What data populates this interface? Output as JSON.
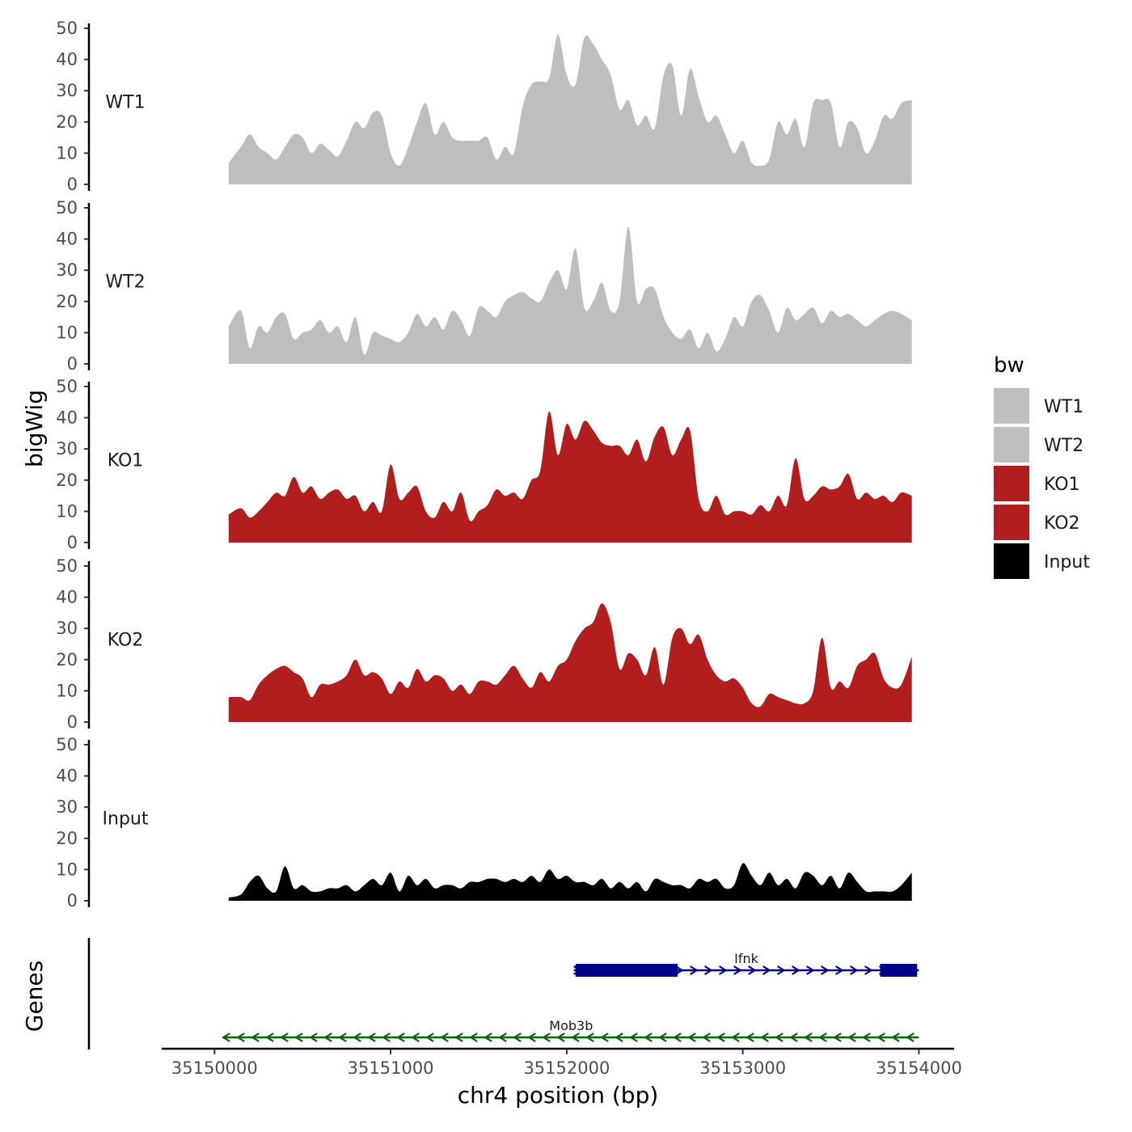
{
  "chart_data": {
    "type": "area",
    "xlabel": "chr4 position (bp)",
    "ylabel": "bigWig",
    "genes_label": "Genes",
    "xlim": [
      35149700,
      35154200
    ],
    "xticks": [
      35150000,
      35151000,
      35152000,
      35153000,
      35154000
    ],
    "xtick_labels": [
      "35150000",
      "35151000",
      "35152000",
      "35153000",
      "35154000"
    ],
    "ylim": [
      0,
      50
    ],
    "yticks": [
      0,
      10,
      20,
      30,
      40,
      50
    ],
    "ytick_labels": [
      "0",
      "10",
      "20",
      "30",
      "40",
      "50"
    ],
    "legend": {
      "title": "bw",
      "position": "right",
      "items": [
        {
          "label": "WT1",
          "color": "#bebebe"
        },
        {
          "label": "WT2",
          "color": "#bebebe"
        },
        {
          "label": "KO1",
          "color": "#b21d1e"
        },
        {
          "label": "KO2",
          "color": "#b21d1e"
        },
        {
          "label": "Input",
          "color": "#000000"
        }
      ]
    },
    "series": [
      {
        "name": "WT1",
        "color": "#bebebe",
        "x": [
          35150080,
          35150150,
          35150200,
          35150250,
          35150300,
          35150350,
          35150400,
          35150450,
          35150500,
          35150550,
          35150600,
          35150650,
          35150700,
          35150750,
          35150800,
          35150850,
          35150900,
          35150950,
          35151000,
          35151050,
          35151100,
          35151150,
          35151200,
          35151250,
          35151300,
          35151350,
          35151400,
          35151450,
          35151500,
          35151550,
          35151600,
          35151650,
          35151700,
          35151750,
          35151800,
          35151850,
          35151900,
          35151950,
          35152000,
          35152050,
          35152100,
          35152150,
          35152200,
          35152250,
          35152300,
          35152350,
          35152400,
          35152450,
          35152500,
          35152550,
          35152600,
          35152650,
          35152700,
          35152750,
          35152800,
          35152850,
          35152900,
          35152950,
          35153000,
          35153050,
          35153100,
          35153150,
          35153200,
          35153250,
          35153300,
          35153350,
          35153400,
          35153450,
          35153500,
          35153550,
          35153600,
          35153650,
          35153700,
          35153750,
          35153800,
          35153850,
          35153900,
          35153960
        ],
        "values": [
          7,
          12,
          16,
          12,
          10,
          8,
          12,
          16,
          15,
          10,
          13,
          11,
          9,
          14,
          20,
          18,
          23,
          22,
          10,
          6,
          12,
          20,
          26,
          16,
          20,
          15,
          14,
          14,
          14,
          15,
          8,
          12,
          10,
          25,
          32,
          33,
          34,
          48,
          35,
          32,
          47,
          45,
          40,
          35,
          24,
          27,
          19,
          22,
          18,
          35,
          38,
          22,
          37,
          28,
          20,
          22,
          16,
          10,
          14,
          7,
          6,
          8,
          20,
          16,
          21,
          12,
          26,
          27,
          26,
          12,
          20,
          18,
          10,
          14,
          22,
          21,
          26,
          27
        ]
      },
      {
        "name": "WT2",
        "color": "#bebebe",
        "x": [
          35150080,
          35150150,
          35150200,
          35150250,
          35150300,
          35150350,
          35150400,
          35150450,
          35150500,
          35150550,
          35150600,
          35150650,
          35150700,
          35150750,
          35150800,
          35150850,
          35150900,
          35150950,
          35151000,
          35151050,
          35151100,
          35151150,
          35151200,
          35151250,
          35151300,
          35151350,
          35151400,
          35151450,
          35151500,
          35151550,
          35151600,
          35151650,
          35151700,
          35151750,
          35151800,
          35151850,
          35151900,
          35151950,
          35152000,
          35152050,
          35152100,
          35152150,
          35152200,
          35152250,
          35152300,
          35152350,
          35152400,
          35152450,
          35152500,
          35152550,
          35152600,
          35152650,
          35152700,
          35152750,
          35152800,
          35152850,
          35152900,
          35152950,
          35153000,
          35153050,
          35153100,
          35153150,
          35153200,
          35153250,
          35153300,
          35153350,
          35153400,
          35153450,
          35153500,
          35153550,
          35153600,
          35153650,
          35153700,
          35153750,
          35153800,
          35153850,
          35153900,
          35153960
        ],
        "values": [
          12,
          17,
          5,
          12,
          10,
          15,
          16,
          8,
          10,
          11,
          14,
          10,
          12,
          7,
          15,
          3,
          10,
          9,
          8,
          7,
          10,
          16,
          12,
          15,
          11,
          17,
          14,
          9,
          18,
          17,
          15,
          20,
          22,
          23,
          21,
          20,
          26,
          30,
          24,
          37,
          18,
          20,
          26,
          17,
          20,
          44,
          20,
          24,
          24,
          15,
          10,
          8,
          11,
          5,
          10,
          4,
          8,
          15,
          12,
          20,
          22,
          17,
          10,
          18,
          14,
          16,
          18,
          13,
          17,
          15,
          16,
          14,
          12,
          14,
          16,
          17,
          16,
          14
        ]
      },
      {
        "name": "KO1",
        "color": "#b21d1e",
        "x": [
          35150080,
          35150150,
          35150200,
          35150250,
          35150300,
          35150350,
          35150400,
          35150450,
          35150500,
          35150550,
          35150600,
          35150650,
          35150700,
          35150750,
          35150800,
          35150850,
          35150900,
          35150950,
          35151000,
          35151050,
          35151100,
          35151150,
          35151200,
          35151250,
          35151300,
          35151350,
          35151400,
          35151450,
          35151500,
          35151550,
          35151600,
          35151650,
          35151700,
          35151750,
          35151800,
          35151850,
          35151900,
          35151950,
          35152000,
          35152050,
          35152100,
          35152150,
          35152200,
          35152250,
          35152300,
          35152350,
          35152400,
          35152450,
          35152500,
          35152550,
          35152600,
          35152650,
          35152700,
          35152750,
          35152800,
          35152850,
          35152900,
          35152950,
          35153000,
          35153050,
          35153100,
          35153150,
          35153200,
          35153250,
          35153300,
          35153350,
          35153400,
          35153450,
          35153500,
          35153550,
          35153600,
          35153650,
          35153700,
          35153750,
          35153800,
          35153850,
          35153900,
          35153960
        ],
        "values": [
          9,
          11,
          8,
          10,
          13,
          16,
          15,
          21,
          16,
          18,
          14,
          16,
          17,
          14,
          15,
          10,
          13,
          10,
          25,
          14,
          16,
          18,
          10,
          8,
          13,
          10,
          16,
          7,
          10,
          12,
          17,
          15,
          16,
          14,
          20,
          23,
          42,
          28,
          38,
          33,
          39,
          36,
          32,
          31,
          31,
          28,
          33,
          26,
          34,
          37,
          28,
          33,
          36,
          14,
          10,
          15,
          9,
          10,
          10,
          9,
          12,
          10,
          15,
          12,
          27,
          14,
          15,
          18,
          17,
          18,
          22,
          14,
          16,
          14,
          15,
          13,
          16,
          15
        ]
      },
      {
        "name": "KO2",
        "color": "#b21d1e",
        "x": [
          35150080,
          35150150,
          35150200,
          35150250,
          35150300,
          35150350,
          35150400,
          35150450,
          35150500,
          35150550,
          35150600,
          35150650,
          35150700,
          35150750,
          35150800,
          35150850,
          35150900,
          35150950,
          35151000,
          35151050,
          35151100,
          35151150,
          35151200,
          35151250,
          35151300,
          35151350,
          35151400,
          35151450,
          35151500,
          35151550,
          35151600,
          35151650,
          35151700,
          35151750,
          35151800,
          35151850,
          35151900,
          35151950,
          35152000,
          35152050,
          35152100,
          35152150,
          35152200,
          35152250,
          35152300,
          35152350,
          35152400,
          35152450,
          35152500,
          35152550,
          35152600,
          35152650,
          35152700,
          35152750,
          35152800,
          35152850,
          35152900,
          35152950,
          35153000,
          35153050,
          35153100,
          35153150,
          35153200,
          35153250,
          35153300,
          35153350,
          35153400,
          35153450,
          35153500,
          35153550,
          35153600,
          35153650,
          35153700,
          35153750,
          35153800,
          35153850,
          35153900,
          35153960
        ],
        "values": [
          8,
          8,
          7,
          12,
          15,
          17,
          18,
          16,
          14,
          8,
          12,
          12,
          13,
          15,
          20,
          15,
          16,
          14,
          9,
          13,
          11,
          17,
          13,
          15,
          14,
          10,
          12,
          9,
          13,
          13,
          12,
          15,
          18,
          14,
          11,
          16,
          13,
          18,
          20,
          26,
          30,
          32,
          38,
          32,
          17,
          22,
          20,
          15,
          24,
          12,
          27,
          30,
          25,
          28,
          20,
          15,
          13,
          14,
          11,
          6,
          5,
          9,
          8,
          7,
          6,
          6,
          10,
          27,
          11,
          13,
          11,
          18,
          20,
          22,
          14,
          11,
          12,
          21
        ]
      },
      {
        "name": "Input",
        "color": "#000000",
        "x": [
          35150080,
          35150150,
          35150200,
          35150250,
          35150300,
          35150350,
          35150400,
          35150450,
          35150500,
          35150550,
          35150600,
          35150650,
          35150700,
          35150750,
          35150800,
          35150850,
          35150900,
          35150950,
          35151000,
          35151050,
          35151100,
          35151150,
          35151200,
          35151250,
          35151300,
          35151350,
          35151400,
          35151450,
          35151500,
          35151550,
          35151600,
          35151650,
          35151700,
          35151750,
          35151800,
          35151850,
          35151900,
          35151950,
          35152000,
          35152050,
          35152100,
          35152150,
          35152200,
          35152250,
          35152300,
          35152350,
          35152400,
          35152450,
          35152500,
          35152550,
          35152600,
          35152650,
          35152700,
          35152750,
          35152800,
          35152850,
          35152900,
          35152950,
          35153000,
          35153050,
          35153100,
          35153150,
          35153200,
          35153250,
          35153300,
          35153350,
          35153400,
          35153450,
          35153500,
          35153550,
          35153600,
          35153650,
          35153700,
          35153750,
          35153800,
          35153850,
          35153900,
          35153960
        ],
        "values": [
          1,
          2,
          6,
          8,
          4,
          3,
          11,
          4,
          5,
          3,
          3,
          4,
          4,
          5,
          3,
          5,
          7,
          5,
          9,
          3,
          8,
          5,
          7,
          4,
          5,
          5,
          4,
          6,
          6,
          7,
          7,
          6,
          7,
          6,
          8,
          6,
          10,
          7,
          8,
          6,
          6,
          5,
          7,
          4,
          6,
          4,
          6,
          3,
          7,
          6,
          5,
          5,
          4,
          7,
          6,
          7,
          4,
          5,
          12,
          8,
          5,
          9,
          5,
          7,
          4,
          9,
          8,
          5,
          8,
          4,
          9,
          6,
          3,
          3,
          3,
          3,
          5,
          9
        ]
      }
    ],
    "genes": [
      {
        "name": "Ifnk",
        "start": 35152040,
        "end": 35154000,
        "strand": "+",
        "color": "#00008b",
        "exons": [
          [
            35152050,
            35152630
          ],
          [
            35153780,
            35153990
          ]
        ]
      },
      {
        "name": "Mob3b",
        "start": 35150050,
        "end": 35154000,
        "strand": "-",
        "color": "#006400",
        "exons": []
      }
    ]
  }
}
